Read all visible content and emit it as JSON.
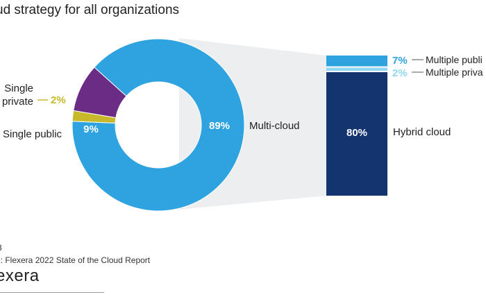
{
  "header": {
    "title": "ud strategy for all organizations"
  },
  "footer": {
    "note": "3",
    "source": "e: Flexera 2022 State of the Cloud Report",
    "brand": "exera"
  },
  "chart_data": [
    {
      "type": "pie",
      "variant": "donut",
      "slices": [
        {
          "label": "Multi-cloud",
          "value": 89,
          "value_label": "89%",
          "color": "#2ea3e0"
        },
        {
          "label": "Single private",
          "value": 2,
          "value_label": "2%",
          "color": "#c8b92a"
        },
        {
          "label": "Single public",
          "value": 9,
          "value_label": "9%",
          "color": "#6a2c84"
        }
      ],
      "label_lines": {
        "single_private": [
          "Single",
          "private"
        ]
      }
    },
    {
      "type": "bar",
      "variant": "stacked-100",
      "breakdown_of": "Multi-cloud",
      "segments": [
        {
          "label": "Multiple publi",
          "value": 7,
          "value_label": "7%",
          "color": "#2ea3e0"
        },
        {
          "label": "Multiple priva",
          "value": 2,
          "value_label": "2%",
          "color": "#8fd7f2"
        },
        {
          "label": "Hybrid cloud",
          "value": 80,
          "value_label": "80%",
          "color": "#14346f"
        }
      ]
    }
  ]
}
